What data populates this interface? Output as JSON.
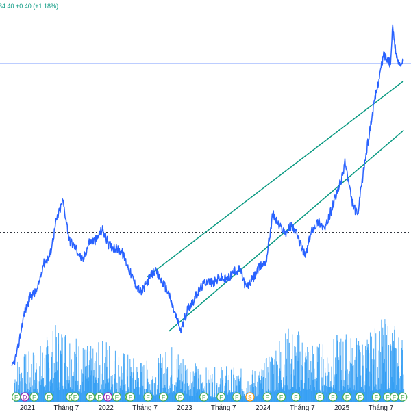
{
  "quote": {
    "text": "34.40  +0.40 (+1.18%)",
    "color": "#089981"
  },
  "colors": {
    "price_line": "#2962ff",
    "volume": "#2196f3",
    "channel": "#089981",
    "dotted_level": "#131722",
    "price_marker_line": "#b2c6ff",
    "marker_fill": "#ffffff",
    "marker_f": "#4caf50",
    "marker_d": "#9c27b0",
    "marker_s": "#ff9800"
  },
  "chart_data": {
    "type": "line",
    "title": "",
    "x_ticks": [
      "2021",
      "Tháng 7",
      "2022",
      "Tháng 7",
      "2023",
      "Tháng 7",
      "2024",
      "Tháng 7",
      "2025",
      "Tháng 7"
    ],
    "x_tick_dates": [
      "2021-01-01",
      "2021-07-01",
      "2022-01-01",
      "2022-07-01",
      "2023-01-01",
      "2023-07-01",
      "2024-01-01",
      "2024-07-01",
      "2025-01-01",
      "2025-07-01"
    ],
    "y_axis": "hidden",
    "price_series": {
      "name": "",
      "dates": [
        "2020-10-20",
        "2020-11-15",
        "2020-12-15",
        "2021-01-15",
        "2021-02-15",
        "2021-03-15",
        "2021-04-15",
        "2021-05-15",
        "2021-06-15",
        "2021-07-01",
        "2021-07-15",
        "2021-08-15",
        "2021-09-15",
        "2021-10-15",
        "2021-11-15",
        "2021-12-15",
        "2022-01-15",
        "2022-02-15",
        "2022-03-15",
        "2022-04-15",
        "2022-05-15",
        "2022-06-15",
        "2022-07-15",
        "2022-08-15",
        "2022-09-15",
        "2022-10-15",
        "2022-11-15",
        "2022-12-15",
        "2023-01-15",
        "2023-02-15",
        "2023-03-15",
        "2023-04-15",
        "2023-05-15",
        "2023-06-15",
        "2023-07-15",
        "2023-08-15",
        "2023-09-15",
        "2023-10-15",
        "2023-11-15",
        "2023-12-15",
        "2024-01-15",
        "2024-02-15",
        "2024-03-15",
        "2024-04-15",
        "2024-05-15",
        "2024-06-15",
        "2024-07-15",
        "2024-08-15",
        "2024-09-15",
        "2024-10-15",
        "2024-11-15",
        "2024-12-15",
        "2025-01-05",
        "2025-01-15",
        "2025-02-15",
        "2025-03-15",
        "2025-04-05",
        "2025-04-15",
        "2025-05-15",
        "2025-06-15",
        "2025-07-15",
        "2025-08-15",
        "2025-08-25",
        "2025-09-15",
        "2025-10-15"
      ],
      "values": [
        -0.06,
        0.05,
        0.28,
        0.4,
        0.43,
        0.6,
        0.65,
        0.87,
        1.0,
        0.87,
        0.75,
        0.7,
        0.62,
        0.74,
        0.75,
        0.82,
        0.72,
        0.7,
        0.68,
        0.58,
        0.48,
        0.42,
        0.5,
        0.56,
        0.5,
        0.43,
        0.3,
        0.18,
        0.32,
        0.38,
        0.45,
        0.5,
        0.48,
        0.52,
        0.5,
        0.55,
        0.57,
        0.45,
        0.51,
        0.58,
        0.62,
        0.92,
        0.84,
        0.8,
        0.85,
        0.75,
        0.65,
        0.82,
        0.87,
        0.82,
        0.95,
        1.07,
        1.16,
        1.25,
        1.0,
        0.9,
        1.12,
        1.22,
        1.48,
        1.72,
        1.92,
        1.85,
        2.09,
        1.87,
        1.87
      ]
    },
    "volume_series": {
      "name": "",
      "dates": [
        "2020-11-01",
        "2021-01-01",
        "2021-03-01",
        "2021-05-01",
        "2021-07-01",
        "2021-09-01",
        "2021-11-01",
        "2022-01-01",
        "2022-03-01",
        "2022-05-01",
        "2022-07-01",
        "2022-09-01",
        "2022-11-01",
        "2023-01-01",
        "2023-03-01",
        "2023-05-01",
        "2023-07-01",
        "2023-09-01",
        "2023-11-01",
        "2024-01-01",
        "2024-03-01",
        "2024-05-01",
        "2024-07-01",
        "2024-09-01",
        "2024-11-01",
        "2025-01-01",
        "2025-03-01",
        "2025-05-01",
        "2025-07-01",
        "2025-09-01",
        "2025-10-15"
      ],
      "values": [
        0.55,
        0.6,
        0.7,
        0.9,
        1.0,
        0.75,
        0.65,
        0.8,
        0.65,
        0.55,
        0.5,
        0.55,
        0.7,
        0.6,
        0.45,
        0.4,
        0.45,
        0.4,
        0.4,
        0.45,
        0.8,
        0.9,
        0.85,
        0.7,
        0.75,
        0.85,
        0.8,
        0.8,
        1.0,
        0.95,
        0.8
      ]
    },
    "channel": {
      "upper": {
        "from": {
          "date": "2022-07-10",
          "value": 0.52
        },
        "to": {
          "date": "2025-10-15",
          "value": 1.75
        }
      },
      "lower": {
        "from": {
          "date": "2022-10-20",
          "value": 0.18
        },
        "to": {
          "date": "2025-10-15",
          "value": 1.44
        }
      }
    },
    "horizontal_levels": [
      {
        "style": "dotted",
        "value": 2.26
      },
      {
        "style": "dotted",
        "value": 0.8
      },
      {
        "style": "solid",
        "value": 1.86
      }
    ],
    "event_markers": {
      "dates": [
        "2020-11-10",
        "2020-12-20",
        "2021-02-01",
        "2021-04-10",
        "2021-07-20",
        "2021-08-10",
        "2021-10-20",
        "2021-12-01",
        "2022-01-10",
        "2022-02-20",
        "2022-04-20",
        "2022-04-25",
        "2022-07-15",
        "2022-09-25",
        "2022-12-10",
        "2023-04-01",
        "2023-06-20",
        "2023-09-01",
        "2023-11-01",
        "2024-01-20",
        "2024-03-25",
        "2024-06-01",
        "2024-09-20",
        "2024-11-20",
        "2025-01-25",
        "2025-03-25",
        "2025-06-10",
        "2025-08-01",
        "2025-09-01",
        "2025-10-10"
      ],
      "letters": [
        "F",
        "D",
        "F",
        "F",
        "F",
        "F",
        "F",
        "F",
        "D",
        "F",
        "F",
        "F",
        "F",
        "F",
        "F",
        "F",
        "F",
        "F",
        "S",
        "F",
        "F",
        "F",
        "F",
        "F",
        "F",
        "F",
        "F",
        "F",
        "F",
        "F"
      ]
    }
  }
}
